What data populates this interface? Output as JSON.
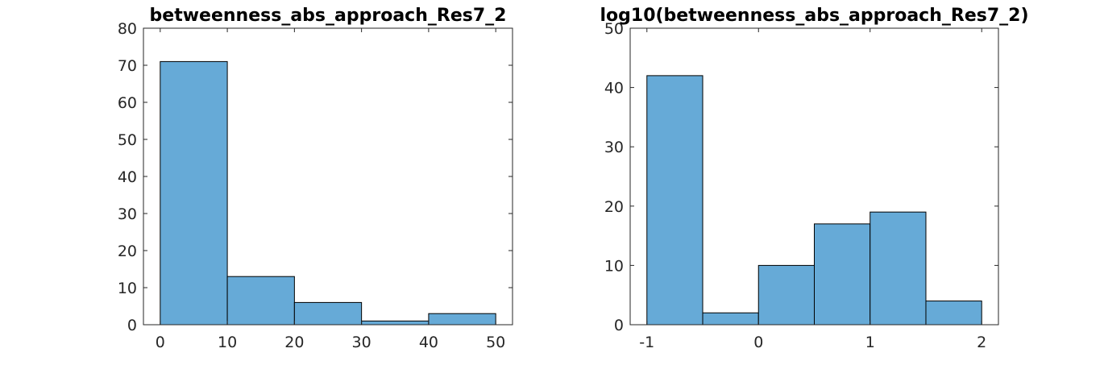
{
  "bar_color": "#66aad7",
  "chart_data": [
    {
      "type": "bar",
      "subtype": "histogram",
      "title": "betweenness_abs_approach_Res7_2",
      "xlabel": "",
      "ylabel": "",
      "xlim": [
        -2.5,
        52.5
      ],
      "ylim": [
        0,
        80
      ],
      "xticks": [
        0,
        10,
        20,
        30,
        40,
        50
      ],
      "xtick_labels": [
        "0",
        "10",
        "20",
        "30",
        "40",
        "50"
      ],
      "yticks": [
        0,
        10,
        20,
        30,
        40,
        50,
        60,
        70,
        80
      ],
      "ytick_labels": [
        "0",
        "10",
        "20",
        "30",
        "40",
        "50",
        "60",
        "70",
        "80"
      ],
      "bin_edges": [
        0,
        10,
        20,
        30,
        40,
        50
      ],
      "values": [
        71,
        13,
        6,
        1,
        3
      ],
      "grid": false
    },
    {
      "type": "bar",
      "subtype": "histogram",
      "title": "log10(betweenness_abs_approach_Res7_2)",
      "xlabel": "",
      "ylabel": "",
      "xlim": [
        -1.15,
        2.15
      ],
      "ylim": [
        0,
        50
      ],
      "xticks": [
        -1,
        0,
        1,
        2
      ],
      "xtick_labels": [
        "-1",
        "0",
        "1",
        "2"
      ],
      "yticks": [
        0,
        10,
        20,
        30,
        40,
        50
      ],
      "ytick_labels": [
        "0",
        "10",
        "20",
        "30",
        "40",
        "50"
      ],
      "bin_edges": [
        -1,
        -0.5,
        0,
        0.5,
        1,
        1.5,
        2
      ],
      "values": [
        42,
        2,
        10,
        17,
        19,
        4
      ],
      "grid": false
    }
  ]
}
